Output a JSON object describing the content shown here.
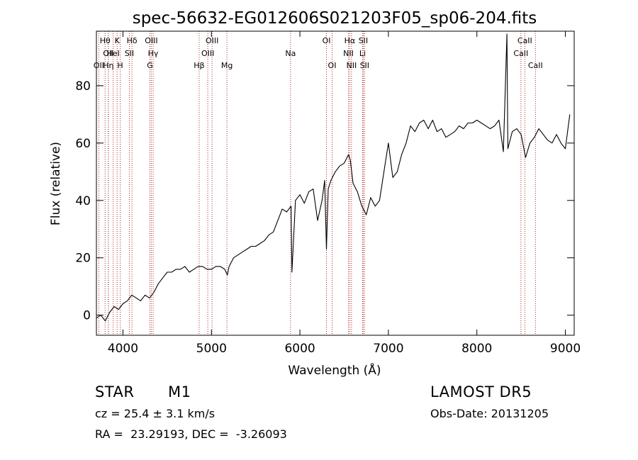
{
  "chart_data": {
    "type": "line",
    "title": "spec-56632-EG012606S021203F05_sp06-204.fits",
    "xlabel": "Wavelength (Å)",
    "ylabel": "Flux (relative)",
    "xlim": [
      3700,
      9100
    ],
    "ylim": [
      -7,
      99
    ],
    "xticks": [
      4000,
      5000,
      6000,
      7000,
      8000,
      9000
    ],
    "yticks": [
      0,
      20,
      40,
      60,
      80
    ],
    "grid": false,
    "line_color": "#000000",
    "marker_color": "#b22222",
    "series": [
      {
        "x": [
          3700,
          3750,
          3800,
          3850,
          3900,
          3950,
          4000,
          4050,
          4100,
          4150,
          4200,
          4250,
          4300,
          4350,
          4400,
          4450,
          4500,
          4550,
          4600,
          4650,
          4700,
          4750,
          4800,
          4850,
          4900,
          4950,
          5000,
          5050,
          5100,
          5150,
          5180,
          5200,
          5250,
          5300,
          5350,
          5400,
          5450,
          5500,
          5550,
          5600,
          5650,
          5700,
          5750,
          5800,
          5850,
          5900,
          5910,
          5950,
          6000,
          6050,
          6100,
          6150,
          6200,
          6250,
          6280,
          6300,
          6320,
          6350,
          6400,
          6450,
          6500,
          6550,
          6570,
          6600,
          6650,
          6700,
          6750,
          6800,
          6850,
          6900,
          6950,
          7000,
          7050,
          7100,
          7150,
          7200,
          7250,
          7300,
          7350,
          7400,
          7450,
          7500,
          7550,
          7600,
          7650,
          7700,
          7750,
          7800,
          7850,
          7900,
          7950,
          8000,
          8050,
          8100,
          8150,
          8200,
          8250,
          8300,
          8340,
          8350,
          8400,
          8450,
          8500,
          8550,
          8600,
          8650,
          8700,
          8750,
          8800,
          8850,
          8900,
          8950,
          9000,
          9050
        ],
        "y": [
          -1,
          0,
          -2,
          1,
          3,
          2,
          4,
          5,
          7,
          6,
          5,
          7,
          6,
          8,
          11,
          13,
          15,
          15,
          16,
          16,
          17,
          15,
          16,
          17,
          17,
          16,
          16,
          17,
          17,
          16,
          14,
          17,
          20,
          21,
          22,
          23,
          24,
          24,
          25,
          26,
          28,
          29,
          33,
          37,
          36,
          38,
          15,
          40,
          42,
          39,
          43,
          44,
          33,
          40,
          47,
          23,
          44,
          47,
          50,
          52,
          53,
          56,
          54,
          46,
          43,
          38,
          35,
          41,
          38,
          40,
          50,
          60,
          48,
          50,
          56,
          60,
          66,
          64,
          67,
          68,
          65,
          68,
          64,
          65,
          62,
          63,
          64,
          66,
          65,
          67,
          67,
          68,
          67,
          66,
          65,
          66,
          68,
          57,
          98,
          58,
          64,
          65,
          63,
          55,
          60,
          62,
          65,
          63,
          61,
          60,
          63,
          60,
          58,
          70
        ]
      }
    ],
    "annotations": [
      {
        "label": "OII",
        "x": 3727,
        "row": 2
      },
      {
        "label": "Hθ",
        "x": 3798,
        "row": 0
      },
      {
        "label": "OII",
        "x": 3835,
        "row": 1
      },
      {
        "label": "Hη",
        "x": 3835,
        "row": 2
      },
      {
        "label": "HeI",
        "x": 3889,
        "row": 1
      },
      {
        "label": "K",
        "x": 3934,
        "row": 0
      },
      {
        "label": "H",
        "x": 3969,
        "row": 2
      },
      {
        "label": "SII",
        "x": 4072,
        "row": 1
      },
      {
        "label": "Hδ",
        "x": 4102,
        "row": 0
      },
      {
        "label": "G",
        "x": 4305,
        "row": 2
      },
      {
        "label": "OIII",
        "x": 4320,
        "row": 0
      },
      {
        "label": "Hγ",
        "x": 4341,
        "row": 1
      },
      {
        "label": "Hβ",
        "x": 4861,
        "row": 2
      },
      {
        "label": "OIII",
        "x": 4959,
        "row": 1
      },
      {
        "label": "OIII",
        "x": 5007,
        "row": 0
      },
      {
        "label": "Mg",
        "x": 5175,
        "row": 2
      },
      {
        "label": "Na",
        "x": 5894,
        "row": 1
      },
      {
        "label": "OI",
        "x": 6300,
        "row": 0
      },
      {
        "label": "OI",
        "x": 6364,
        "row": 2
      },
      {
        "label": "NII",
        "x": 6548,
        "row": 1
      },
      {
        "label": "Hα",
        "x": 6563,
        "row": 0
      },
      {
        "label": "NII",
        "x": 6583,
        "row": 2
      },
      {
        "label": "SII",
        "x": 6716,
        "row": 0
      },
      {
        "label": "Li",
        "x": 6708,
        "row": 1
      },
      {
        "label": "SII",
        "x": 6731,
        "row": 2
      },
      {
        "label": "CaII",
        "x": 8498,
        "row": 1
      },
      {
        "label": "CaII",
        "x": 8542,
        "row": 0
      },
      {
        "label": "CaII",
        "x": 8662,
        "row": 2
      }
    ]
  },
  "info": {
    "object_class": "STAR",
    "subclass": "M1",
    "redshift": "cz = 25.4 ± 3.1 km/s",
    "coords": "RA =  23.29193, DEC =  -3.26093",
    "survey": "LAMOST DR5",
    "obs_date": "Obs-Date: 20131205"
  }
}
